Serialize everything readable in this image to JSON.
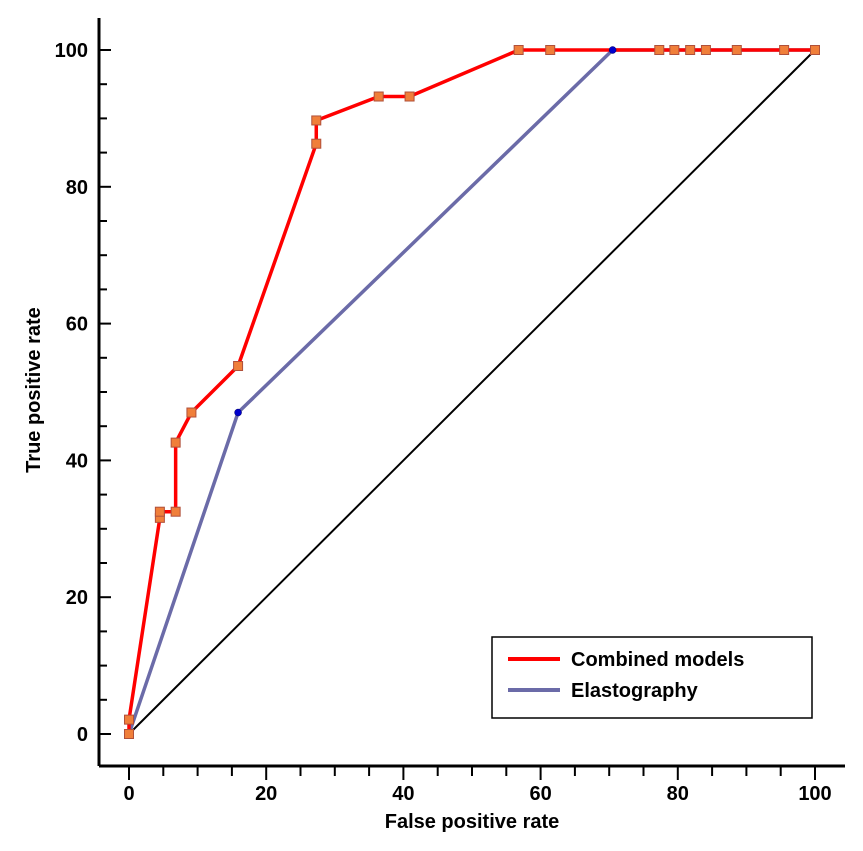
{
  "chart_data": {
    "type": "line",
    "xlabel": "False positive rate",
    "ylabel": "True positive rate",
    "xlim": [
      0,
      100
    ],
    "ylim": [
      0,
      100
    ],
    "xticks": [
      0,
      20,
      40,
      60,
      80,
      100
    ],
    "yticks": [
      0,
      20,
      40,
      60,
      80,
      100
    ],
    "legend": "bottom-right",
    "series": [
      {
        "name": "Combined models",
        "color": "#ff0000",
        "marker": "square",
        "marker_color": "#f07f3a",
        "x": [
          0,
          0,
          4.5,
          4.5,
          6.8,
          6.8,
          9.1,
          15.9,
          27.3,
          27.3,
          36.4,
          40.9,
          56.8,
          61.4,
          77.3,
          79.5,
          81.8,
          84.1,
          88.6,
          95.5,
          100
        ],
        "y": [
          0,
          2.1,
          31.6,
          32.5,
          32.5,
          42.6,
          47.0,
          53.8,
          86.3,
          89.7,
          93.2,
          93.2,
          100,
          100,
          100,
          100,
          100,
          100,
          100,
          100,
          100
        ]
      },
      {
        "name": "Elastography",
        "color": "#6b6ba8",
        "marker": "circle",
        "marker_color": "#0000cc",
        "x": [
          0,
          15.9,
          70.5,
          100
        ],
        "y": [
          0,
          47.0,
          100,
          100
        ]
      },
      {
        "color": "#000000",
        "marker": "none",
        "x": [
          0,
          100
        ],
        "y": [
          0,
          100
        ]
      }
    ]
  }
}
